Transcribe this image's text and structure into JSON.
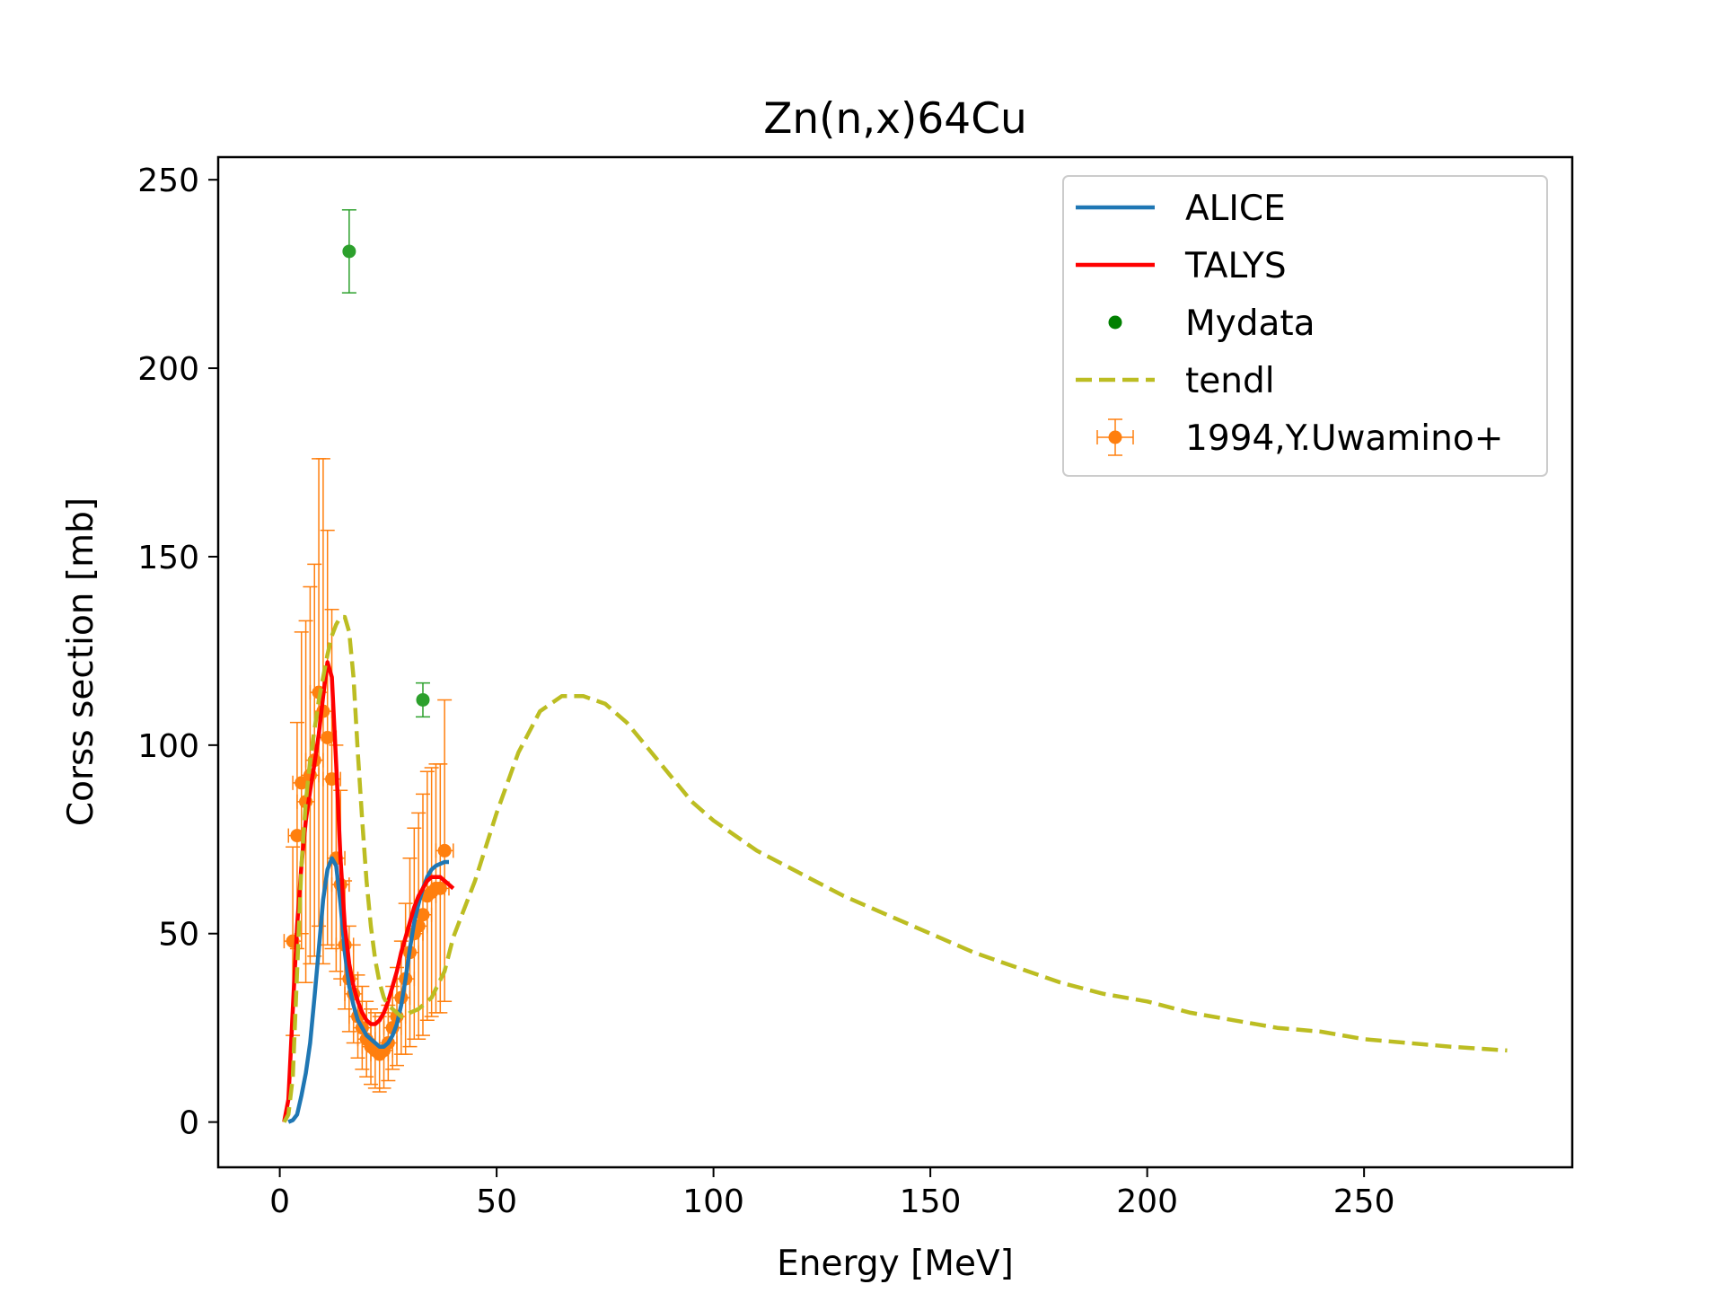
{
  "chart_data": {
    "type": "line",
    "title": "Zn(n,x)64Cu",
    "xlabel": "Energy [MeV]",
    "ylabel": "Corss section [mb]",
    "xlim": [
      -14.2,
      298
    ],
    "ylim": [
      -12,
      256
    ],
    "xticks": [
      0,
      50,
      100,
      150,
      200,
      250
    ],
    "yticks": [
      0,
      50,
      100,
      150,
      200,
      250
    ],
    "grid": false,
    "legend_position": "top-right",
    "series": [
      {
        "name": "ALICE",
        "kind": "line",
        "color": "#1f77b4",
        "x": [
          2,
          3,
          4,
          5,
          6,
          7,
          8,
          9,
          10,
          11,
          12,
          13,
          14,
          15,
          16,
          17,
          18,
          19,
          20,
          21,
          22,
          23,
          24,
          25,
          26,
          27,
          28,
          29,
          30,
          31,
          32,
          33,
          34,
          35,
          36,
          37,
          38,
          39
        ],
        "y": [
          0,
          0.5,
          2,
          7,
          13,
          21,
          33,
          46,
          59,
          67,
          70,
          68,
          58,
          45,
          36,
          31,
          27,
          25,
          23,
          22,
          21,
          20,
          20,
          21,
          23,
          26,
          31,
          38,
          46,
          53,
          58,
          62,
          65,
          67,
          68,
          68.5,
          69,
          69
        ]
      },
      {
        "name": "TALYS",
        "kind": "line",
        "color": "#ff0000",
        "x": [
          1,
          2,
          3,
          4,
          5,
          6,
          7,
          8,
          9,
          10,
          11,
          12,
          13,
          14,
          15,
          16,
          17,
          18,
          19,
          20,
          21,
          22,
          23,
          24,
          25,
          26,
          27,
          28,
          29,
          30,
          31,
          32,
          33,
          34,
          35,
          36,
          37,
          38,
          39,
          40
        ],
        "y": [
          0,
          6,
          30,
          52,
          68,
          80,
          88,
          95,
          103,
          113,
          122,
          118,
          95,
          70,
          52,
          42,
          36,
          32,
          29,
          27,
          26,
          26,
          27,
          29,
          32,
          36,
          40,
          45,
          49,
          53,
          57,
          60,
          62,
          64,
          65,
          65,
          65,
          64,
          63,
          62
        ]
      },
      {
        "name": "Mydata",
        "kind": "errorbar",
        "color": "#2ca02c",
        "legend_marker_color": "#008000",
        "x": [
          16,
          33
        ],
        "y": [
          231,
          112
        ],
        "yerr": [
          11,
          4.5
        ]
      },
      {
        "name": "tendl",
        "kind": "dashed-line",
        "color": "#bcbd22",
        "x": [
          1,
          2,
          3,
          4,
          5,
          6,
          7,
          8,
          9,
          10,
          11,
          12,
          13,
          14,
          15,
          16,
          17,
          18,
          19,
          20,
          21,
          22,
          23,
          24,
          25,
          26,
          27,
          28,
          29,
          30,
          32,
          35,
          38,
          40,
          45,
          50,
          55,
          60,
          65,
          70,
          75,
          80,
          85,
          90,
          95,
          100,
          105,
          110,
          120,
          130,
          140,
          150,
          160,
          170,
          180,
          190,
          200,
          210,
          220,
          230,
          240,
          250,
          260,
          270,
          283
        ],
        "y": [
          0,
          2,
          12,
          40,
          68,
          85,
          96,
          104,
          112,
          118,
          124,
          129,
          132,
          134,
          134,
          130,
          118,
          98,
          80,
          64,
          52,
          43,
          37,
          33,
          31,
          30,
          29,
          28,
          28,
          29,
          30,
          33,
          40,
          49,
          64,
          82,
          98,
          109,
          113,
          113,
          111,
          106,
          99,
          92,
          85,
          80,
          76,
          72,
          66,
          60,
          55,
          50,
          45,
          41,
          37,
          34,
          32,
          29,
          27,
          25,
          24,
          22,
          21,
          20,
          19
        ]
      },
      {
        "name": "1994,Y.Uwamino+",
        "kind": "errorbar",
        "color": "#ff7f0e",
        "x": [
          3,
          4,
          5,
          6,
          7,
          8,
          9,
          10,
          11,
          12,
          13,
          14,
          15,
          16,
          17,
          18,
          19,
          20,
          21,
          22,
          23,
          24,
          25,
          26,
          27,
          28,
          29,
          30,
          31,
          32,
          33,
          34,
          35,
          36,
          37,
          38
        ],
        "y": [
          48,
          76,
          90,
          85,
          92,
          96,
          114,
          109,
          102,
          91,
          70,
          63,
          47,
          38,
          34,
          28,
          25,
          22,
          20,
          19,
          18,
          19,
          21,
          25,
          28,
          33,
          38,
          45,
          50,
          52,
          55,
          60,
          61,
          62,
          62,
          72
        ],
        "yerr": [
          25,
          30,
          40,
          48,
          50,
          52,
          62,
          67,
          55,
          45,
          30,
          25,
          17,
          14,
          13,
          11,
          11,
          10,
          10,
          10,
          10,
          10,
          10,
          11,
          13,
          15,
          20,
          25,
          28,
          30,
          32,
          33,
          33,
          33,
          33,
          40
        ],
        "xerr": [
          2,
          2,
          2,
          2,
          2,
          2,
          2,
          2,
          2,
          2,
          2,
          2,
          2,
          2,
          2,
          2,
          2,
          2,
          2,
          2,
          2,
          2,
          2,
          2,
          2,
          2,
          2,
          2,
          2,
          2,
          2,
          2,
          2,
          2,
          2,
          2
        ]
      }
    ]
  }
}
